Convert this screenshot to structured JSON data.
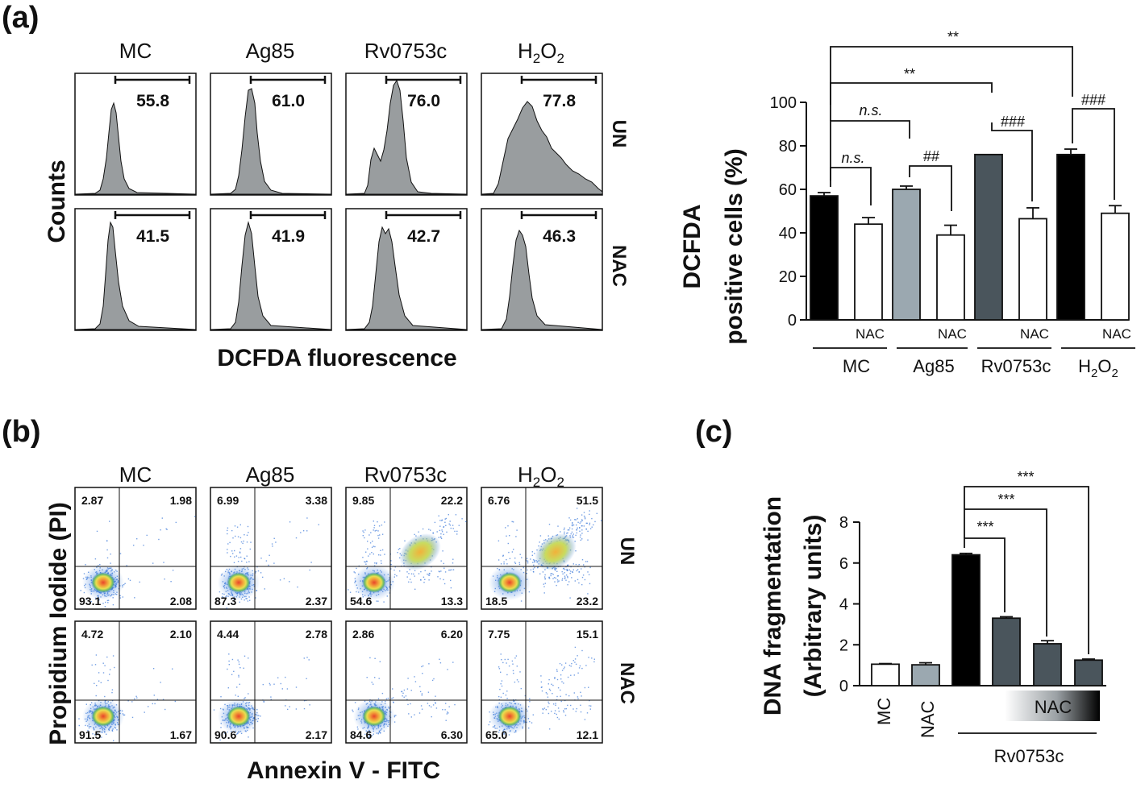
{
  "panel_labels": {
    "a": "(a)",
    "b": "(b)",
    "c": "(c)"
  },
  "flow": {
    "conditions": [
      "MC",
      "Ag85",
      "Rv0753c",
      "H2O2"
    ],
    "treatments": [
      "UN",
      "NAC"
    ],
    "ylabel": "Counts",
    "xlabel": "DCFDA fluorescence",
    "gate_percent": {
      "UN": [
        "55.8",
        "61.0",
        "76.0",
        "77.8"
      ],
      "NAC": [
        "41.5",
        "41.9",
        "42.7",
        "46.3"
      ]
    }
  },
  "apoptosis": {
    "conditions": [
      "MC",
      "Ag85",
      "Rv0753c",
      "H2O2"
    ],
    "treatments": [
      "UN",
      "NAC"
    ],
    "ylabel": "Propidium Iodide (PI)",
    "xlabel": "Annexin V - FITC",
    "quadrants": {
      "UN": [
        {
          "ul": "2.87",
          "ur": "1.98",
          "ll": "93.1",
          "lr": "2.08"
        },
        {
          "ul": "6.99",
          "ur": "3.38",
          "ll": "87.3",
          "lr": "2.37"
        },
        {
          "ul": "9.85",
          "ur": "22.2",
          "ll": "54.6",
          "lr": "13.3"
        },
        {
          "ul": "6.76",
          "ur": "51.5",
          "ll": "18.5",
          "lr": "23.2"
        }
      ],
      "NAC": [
        {
          "ul": "4.72",
          "ur": "2.10",
          "ll": "91.5",
          "lr": "1.67"
        },
        {
          "ul": "4.44",
          "ur": "2.78",
          "ll": "90.6",
          "lr": "2.17"
        },
        {
          "ul": "2.86",
          "ur": "6.20",
          "ll": "84.6",
          "lr": "6.30"
        },
        {
          "ul": "7.75",
          "ur": "15.1",
          "ll": "65.0",
          "lr": "12.1"
        }
      ]
    }
  },
  "chart_data": [
    {
      "type": "bar",
      "ylabel_line1": "DCFDA",
      "ylabel_line2": "positive cells (%)",
      "ylim": [
        0,
        100
      ],
      "yticks": [
        0,
        20,
        40,
        60,
        80,
        100
      ],
      "groups": [
        "MC",
        "Ag85",
        "Rv0753c",
        "H2O2"
      ],
      "bar_sublabel": "NAC",
      "bars": [
        {
          "group": "MC",
          "treatment": "UN",
          "value": 57,
          "error": 1.5,
          "color": "#000000"
        },
        {
          "group": "MC",
          "treatment": "NAC",
          "value": 44,
          "error": 3,
          "color": "#ffffff"
        },
        {
          "group": "Ag85",
          "treatment": "UN",
          "value": 60,
          "error": 1.5,
          "color": "#9ba8b0"
        },
        {
          "group": "Ag85",
          "treatment": "NAC",
          "value": 39,
          "error": 4.5,
          "color": "#ffffff"
        },
        {
          "group": "Rv0753c",
          "treatment": "UN",
          "value": 76,
          "error": 0,
          "color": "#4a555c"
        },
        {
          "group": "Rv0753c",
          "treatment": "NAC",
          "value": 46.5,
          "error": 5,
          "color": "#ffffff"
        },
        {
          "group": "H2O2",
          "treatment": "UN",
          "value": 76,
          "error": 2.5,
          "color": "#000000"
        },
        {
          "group": "H2O2",
          "treatment": "NAC",
          "value": 49,
          "error": 3.5,
          "color": "#ffffff"
        }
      ],
      "annotations": [
        "**",
        "**",
        "n.s.",
        "n.s.",
        "##",
        "###",
        "###"
      ]
    },
    {
      "type": "bar",
      "ylabel_line1": "DNA fragmentation",
      "ylabel_line2": "(Arbitrary units)",
      "ylim": [
        0,
        8
      ],
      "yticks": [
        0,
        2,
        4,
        6,
        8
      ],
      "categories": [
        "MC",
        "NAC",
        "",
        "",
        "",
        ""
      ],
      "values": [
        1.05,
        1.02,
        6.4,
        3.3,
        2.05,
        1.25
      ],
      "errors": [
        0.03,
        0.1,
        0.07,
        0.07,
        0.15,
        0.05
      ],
      "colors": [
        "#ffffff",
        "#9ba8b0",
        "#000000",
        "#4a555c",
        "#4a555c",
        "#4a555c"
      ],
      "gradient_label": "NAC",
      "group_label": "Rv0753c",
      "annotations": [
        "***",
        "***",
        "***"
      ]
    }
  ]
}
